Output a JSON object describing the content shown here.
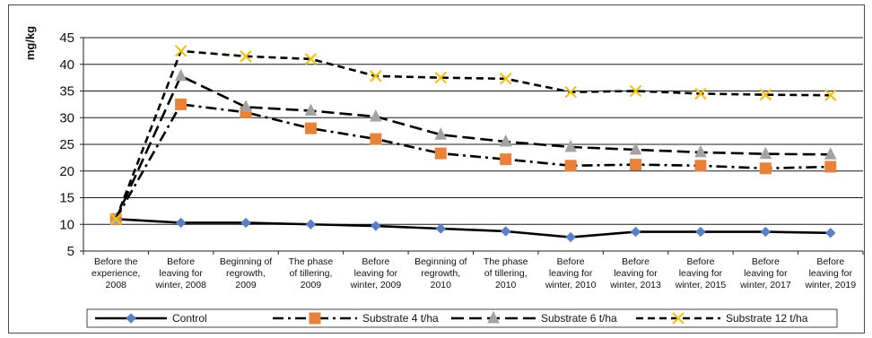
{
  "chart_data": {
    "type": "line",
    "ylabel": "mg/kg",
    "ylim": [
      5,
      45
    ],
    "yticks": [
      5,
      10,
      15,
      20,
      25,
      30,
      35,
      40,
      45
    ],
    "grid": "horizontal",
    "legend_position": "bottom",
    "categories": [
      [
        "Before the",
        "experience,",
        "2008"
      ],
      [
        "Before",
        "leaving for",
        "winter, 2008"
      ],
      [
        "Beginning of",
        "regrowth,",
        "2009"
      ],
      [
        "The phase",
        "of tillering,",
        "2009"
      ],
      [
        "Before",
        "leaving for",
        "winter, 2009"
      ],
      [
        "Beginning of",
        "regrowth,",
        "2010"
      ],
      [
        "The phase",
        "of tillering,",
        "2010"
      ],
      [
        "Before",
        "leaving for",
        "winter, 2010"
      ],
      [
        "Before",
        "leaving for",
        "winter, 2013"
      ],
      [
        "Before",
        "leaving for",
        "winter, 2015"
      ],
      [
        "Before",
        "leaving for",
        "winter, 2017"
      ],
      [
        "Before",
        "leaving for",
        "winter, 2019"
      ]
    ],
    "series": [
      {
        "name": "Control",
        "values": [
          11.0,
          10.3,
          10.3,
          10.0,
          9.7,
          9.2,
          8.7,
          7.6,
          8.6,
          8.6,
          8.6,
          8.4
        ],
        "color": "#000000",
        "marker": "diamond",
        "marker_color": "#5a7fc7",
        "line_style": "solid"
      },
      {
        "name": "Substrate 4 t/ha",
        "values": [
          11.0,
          32.5,
          31.0,
          28.0,
          26.0,
          23.3,
          22.2,
          21.0,
          21.2,
          21.0,
          20.5,
          20.8
        ],
        "color": "#000000",
        "marker": "square",
        "marker_color": "#e8823a",
        "line_style": "dashdot"
      },
      {
        "name": "Substrate 6 t/ha",
        "values": [
          11.0,
          37.8,
          32.0,
          31.3,
          30.2,
          26.8,
          25.5,
          24.5,
          24.0,
          23.5,
          23.2,
          23.1
        ],
        "color": "#000000",
        "marker": "triangle",
        "marker_color": "#a3a3a3",
        "line_style": "longdash"
      },
      {
        "name": "Substrate 12 t/ha",
        "values": [
          11.0,
          42.5,
          41.5,
          41.0,
          37.8,
          37.5,
          37.3,
          34.8,
          35.0,
          34.5,
          34.3,
          34.2
        ],
        "color": "#000000",
        "marker": "x",
        "marker_color": "#f2c118",
        "line_style": "shortdash"
      }
    ]
  }
}
